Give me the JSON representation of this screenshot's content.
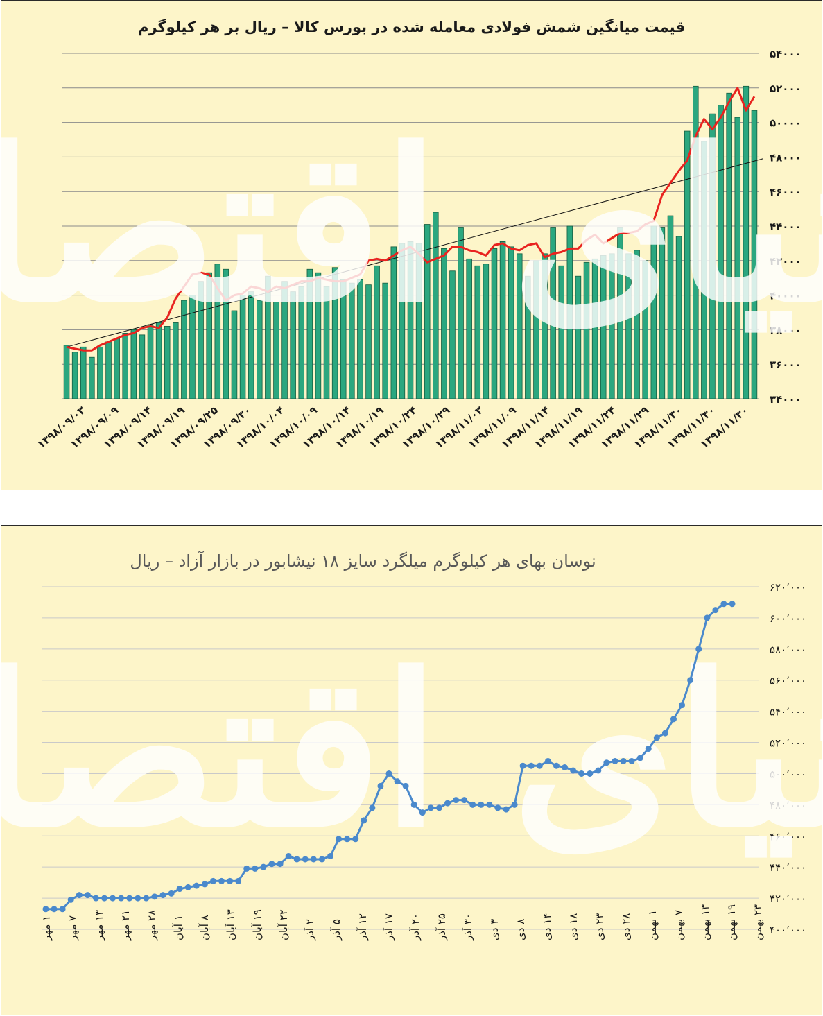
{
  "charts_meta": {
    "accent_bar_color": "#2ba77f",
    "bar_edge_color": "#155c3f",
    "line1_color": "#e8231f",
    "trend_color": "#111111",
    "line2_color": "#4a89cc",
    "panel_bg": "#fdf5c9",
    "watermark_text": "دنیای اقتصاد"
  },
  "chart_data": [
    {
      "type": "bar",
      "title": "قیمت میانگین شمش فولادی معامله شده در بورس کالا – ریال بر هر کیلوگرم",
      "ylim": [
        34000,
        54000
      ],
      "y_ticks": [
        "۵۴۰۰۰",
        "۵۲۰۰۰",
        "۵۰۰۰۰",
        "۴۸۰۰۰",
        "۴۶۰۰۰",
        "۴۴۰۰۰",
        "۴۲۰۰۰",
        "۴۰۰۰۰",
        "۳۸۰۰۰",
        "۳۶۰۰۰",
        "۳۴۰۰۰"
      ],
      "x_tick_labels": [
        "۱۳۹۸/۰۹/۰۳",
        "۱۳۹۸/۰۹/۰۹",
        "۱۳۹۸/۰۹/۱۴",
        "۱۳۹۸/۰۹/۱۹",
        "۱۳۹۸/۰۹/۲۵",
        "۱۳۹۸/۰۹/۳۰",
        "۱۳۹۸/۱۰/۰۴",
        "۱۳۹۸/۱۰/۰۹",
        "۱۳۹۸/۱۰/۱۴",
        "۱۳۹۸/۱۰/۱۹",
        "۱۳۹۸/۱۰/۲۴",
        "۱۳۹۸/۱۰/۲۹",
        "۱۳۹۸/۱۱/۰۳",
        "۱۳۹۸/۱۱/۰۹",
        "۱۳۹۸/۱۱/۱۴",
        "۱۳۹۸/۱۱/۱۹",
        "۱۳۹۸/۱۱/۲۴",
        "۱۳۹۸/۱۱/۲۹",
        "۱۳۹۸/۱۱/۳۰",
        "۱۳۹۸/۱۱/۳۰",
        "۱۳۹۸/۱۱/۳۰"
      ],
      "series": [
        {
          "kind": "bars",
          "values": [
            37100,
            36700,
            37000,
            36400,
            37000,
            37300,
            37500,
            37800,
            38000,
            37700,
            38300,
            38400,
            38200,
            38400,
            39700,
            40000,
            40800,
            41300,
            41800,
            41500,
            39100,
            40000,
            40200,
            39700,
            41100,
            39600,
            40800,
            40200,
            40500,
            41500,
            41300,
            40500,
            41600,
            40900,
            40700,
            40900,
            40600,
            41700,
            40700,
            42800,
            43000,
            43100,
            43000,
            44100,
            44800,
            42700,
            41400,
            43900,
            42100,
            41700,
            41800,
            42700,
            43100,
            42800,
            42400,
            41100,
            42000,
            42400,
            43900,
            41700,
            44000,
            41100,
            41900,
            42100,
            42300,
            42400,
            43900,
            42400,
            42600,
            42000,
            44000,
            43900,
            44600,
            43400,
            49500,
            52100,
            48900,
            50500,
            51000,
            51700,
            50300,
            52100,
            50700
          ]
        },
        {
          "kind": "line",
          "values": [
            37000,
            36900,
            36800,
            36800,
            37100,
            37300,
            37500,
            37700,
            37800,
            38100,
            38200,
            38100,
            38700,
            39800,
            40500,
            41200,
            41300,
            41200,
            40400,
            39700,
            40000,
            40100,
            40500,
            40400,
            40200,
            40500,
            40400,
            40600,
            40800,
            40800,
            41000,
            40900,
            40800,
            40800,
            41000,
            41200,
            42000,
            42100,
            42000,
            42300,
            42600,
            42800,
            42400,
            41900,
            42100,
            42300,
            42800,
            42800,
            42600,
            42500,
            42300,
            42900,
            43000,
            42700,
            42600,
            42900,
            43000,
            42200,
            42400,
            42500,
            42700,
            42700,
            43200,
            43500,
            43000,
            43300,
            43600,
            43600,
            43700,
            44100,
            44300,
            45800,
            46500,
            47200,
            47800,
            49200,
            50200,
            49600,
            50300,
            51200,
            52000,
            50700,
            51500
          ]
        },
        {
          "kind": "trendline",
          "values": [
            37000,
            47900
          ]
        }
      ]
    },
    {
      "type": "line",
      "title": "نوسان بهای هر کیلوگرم  میلگرد سایز ۱۸ نیشابور در بازار آزاد – ریال",
      "ylim": [
        400000,
        620000
      ],
      "y_ticks": [
        "۶۲۰٬۰۰۰",
        "۶۰۰٬۰۰۰",
        "۵۸۰٬۰۰۰",
        "۵۶۰٬۰۰۰",
        "۵۴۰٬۰۰۰",
        "۵۲۰٬۰۰۰",
        "۵۰۰٬۰۰۰",
        "۴۸۰٬۰۰۰",
        "۴۶۰٬۰۰۰",
        "۴۴۰٬۰۰۰",
        "۴۲۰٬۰۰۰",
        "۴۰۰٬۰۰۰"
      ],
      "x_tick_labels": [
        "۱ مهر",
        "۷ مهر",
        "۱۳ مهر",
        "۲۱ مهر",
        "۲۸ مهر",
        "۱ آبان",
        "۸ آبان",
        "۱۳ آبان",
        "۱۹ آبان",
        "۲۲ آبان",
        "۲ آذر",
        "۵ آذر",
        "۱۲ آذر",
        "۱۷ آذر",
        "۲۰ آذر",
        "۲۵ آذر",
        "۳۰ آذر",
        "۳ دی",
        "۸ دی",
        "۱۴ دی",
        "۱۸ دی",
        "۲۳ دی",
        "۲۸ دی",
        "۱ بهمن",
        "۷ بهمن",
        "۱۳ بهمن",
        "۱۹ بهمن",
        "۲۳ بهمن"
      ],
      "series": [
        {
          "values": [
            413000,
            413000,
            413000,
            419000,
            422000,
            422000,
            420000,
            420000,
            420000,
            420000,
            420000,
            420000,
            420000,
            421000,
            422000,
            423000,
            426000,
            427000,
            428000,
            429000,
            431000,
            431000,
            431000,
            431000,
            439000,
            439000,
            440000,
            442000,
            442000,
            447000,
            445000,
            445000,
            445000,
            445000,
            447000,
            458000,
            458000,
            458000,
            470000,
            478000,
            492000,
            500000,
            495000,
            492000,
            480000,
            475000,
            478000,
            478000,
            481000,
            483000,
            483000,
            480000,
            480000,
            480000,
            478000,
            477000,
            480000,
            505000,
            505000,
            505000,
            508000,
            505000,
            504000,
            502000,
            500000,
            500000,
            502000,
            507000,
            508000,
            508000,
            508000,
            510000,
            516000,
            523000,
            526000,
            535000,
            544000,
            560000,
            580000,
            600000,
            605000,
            609000,
            609000
          ]
        }
      ]
    }
  ]
}
